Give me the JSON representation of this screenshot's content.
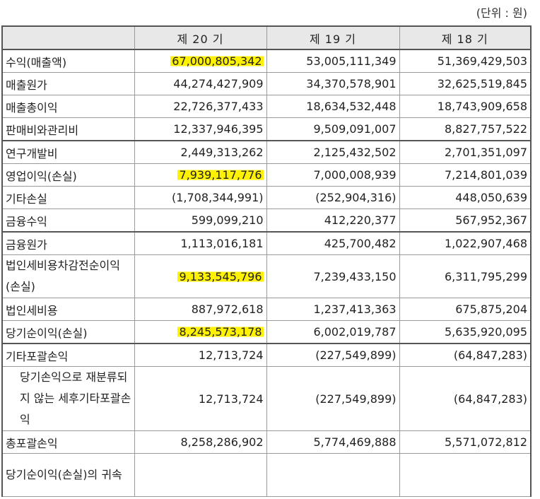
{
  "unit_label": "(단위 : 원)",
  "headers": [
    "",
    "제 20 기",
    "제 19 기",
    "제 18 기"
  ],
  "rows": [
    {
      "label": "수익(매출액)",
      "v1": "67,000,805,342",
      "v2": "53,005,111,349",
      "v3": "51,369,429,503",
      "hl": true
    },
    {
      "label": "매출원가",
      "v1": "44,274,427,909",
      "v2": "34,370,578,901",
      "v3": "32,625,519,845"
    },
    {
      "label": "매출총이익",
      "v1": "22,726,377,433",
      "v2": "18,634,532,448",
      "v3": "18,743,909,658"
    },
    {
      "label": "판매비와관리비",
      "v1": "12,337,946,395",
      "v2": "9,509,091,007",
      "v3": "8,827,757,522"
    },
    {
      "label": "연구개발비",
      "v1": "2,449,313,262",
      "v2": "2,125,432,502",
      "v3": "2,701,351,097"
    },
    {
      "label": "영업이익(손실)",
      "v1": "7,939,117,776",
      "v2": "7,000,008,939",
      "v3": "7,214,801,039",
      "hl": true
    },
    {
      "label": "기타손실",
      "v1": "(1,708,344,991)",
      "v2": "(252,904,316)",
      "v3": "448,050,639"
    },
    {
      "label": "금융수익",
      "v1": "599,099,210",
      "v2": "412,220,377",
      "v3": "567,952,367"
    },
    {
      "label": "금융원가",
      "v1": "1,113,016,181",
      "v2": "425,700,482",
      "v3": "1,022,907,468"
    },
    {
      "label": "법인세비용차감전순이익(손실)",
      "v1": "9,133,545,796",
      "v2": "7,239,433,150",
      "v3": "6,311,795,299",
      "hl": true
    },
    {
      "label": "법인세비용",
      "v1": "887,972,618",
      "v2": "1,237,413,363",
      "v3": "675,875,204"
    },
    {
      "label": "당기순이익(손실)",
      "v1": "8,245,573,178",
      "v2": "6,002,019,787",
      "v3": "5,635,920,095",
      "hl": true
    },
    {
      "label": "기타포괄손익",
      "v1": "12,713,724",
      "v2": "(227,549,899)",
      "v3": "(64,847,283)"
    },
    {
      "label": "당기손익으로 재분류되지 않는 세후기타포괄손익",
      "v1": "12,713,724",
      "v2": "(227,549,899)",
      "v3": "(64,847,283)"
    },
    {
      "label": "총포괄손익",
      "v1": "8,258,286,902",
      "v2": "5,774,469,888",
      "v3": "5,571,072,812"
    },
    {
      "label": "당기순이익(손실)의 귀속",
      "v1": "",
      "v2": "",
      "v3": ""
    }
  ],
  "highlight_color": "#fff200"
}
